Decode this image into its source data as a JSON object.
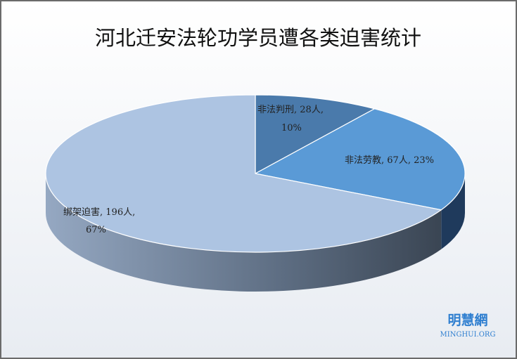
{
  "chart_data": {
    "type": "pie3d",
    "title": "河北迁安法轮功学员遭各类迫害统计",
    "categories": [
      "非法判刑",
      "非法劳教",
      "绑架迫害"
    ],
    "values": [
      28,
      67,
      196
    ],
    "value_labels": [
      "28人",
      "67人",
      "196人"
    ],
    "percents": [
      10,
      23,
      67
    ],
    "percent_labels": [
      "10%",
      "23%",
      "67%"
    ],
    "label_separator": ", ",
    "colors": [
      "#4a7aab",
      "#5a9ad6",
      "#adc4e2"
    ]
  },
  "watermark": {
    "name": "明慧網",
    "site": "MINGHUI.ORG"
  }
}
